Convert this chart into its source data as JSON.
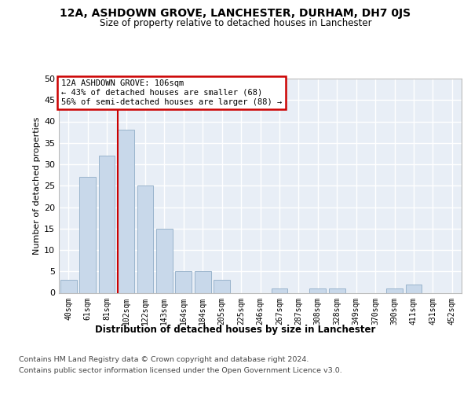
{
  "title": "12A, ASHDOWN GROVE, LANCHESTER, DURHAM, DH7 0JS",
  "subtitle": "Size of property relative to detached houses in Lanchester",
  "xlabel": "Distribution of detached houses by size in Lanchester",
  "ylabel": "Number of detached properties",
  "bar_values": [
    3,
    27,
    32,
    38,
    25,
    15,
    5,
    5,
    3,
    0,
    0,
    1,
    0,
    1,
    1,
    0,
    0,
    1,
    2,
    0,
    0
  ],
  "bar_labels": [
    "40sqm",
    "61sqm",
    "81sqm",
    "102sqm",
    "122sqm",
    "143sqm",
    "164sqm",
    "184sqm",
    "205sqm",
    "225sqm",
    "246sqm",
    "267sqm",
    "287sqm",
    "308sqm",
    "328sqm",
    "349sqm",
    "370sqm",
    "390sqm",
    "411sqm",
    "431sqm",
    "452sqm"
  ],
  "bar_color": "#c8d8ea",
  "bar_edge_color": "#9ab4cc",
  "background_color": "#e8eef6",
  "grid_color": "#ffffff",
  "annotation_line1": "12A ASHDOWN GROVE: 106sqm",
  "annotation_line2": "← 43% of detached houses are smaller (68)",
  "annotation_line3": "56% of semi-detached houses are larger (88) →",
  "annotation_box_bg": "#ffffff",
  "annotation_box_edge": "#cc0000",
  "red_line_color": "#cc0000",
  "red_line_x": 2.57,
  "ylim": [
    0,
    50
  ],
  "yticks": [
    0,
    5,
    10,
    15,
    20,
    25,
    30,
    35,
    40,
    45,
    50
  ],
  "footer_line1": "Contains HM Land Registry data © Crown copyright and database right 2024.",
  "footer_line2": "Contains public sector information licensed under the Open Government Licence v3.0."
}
